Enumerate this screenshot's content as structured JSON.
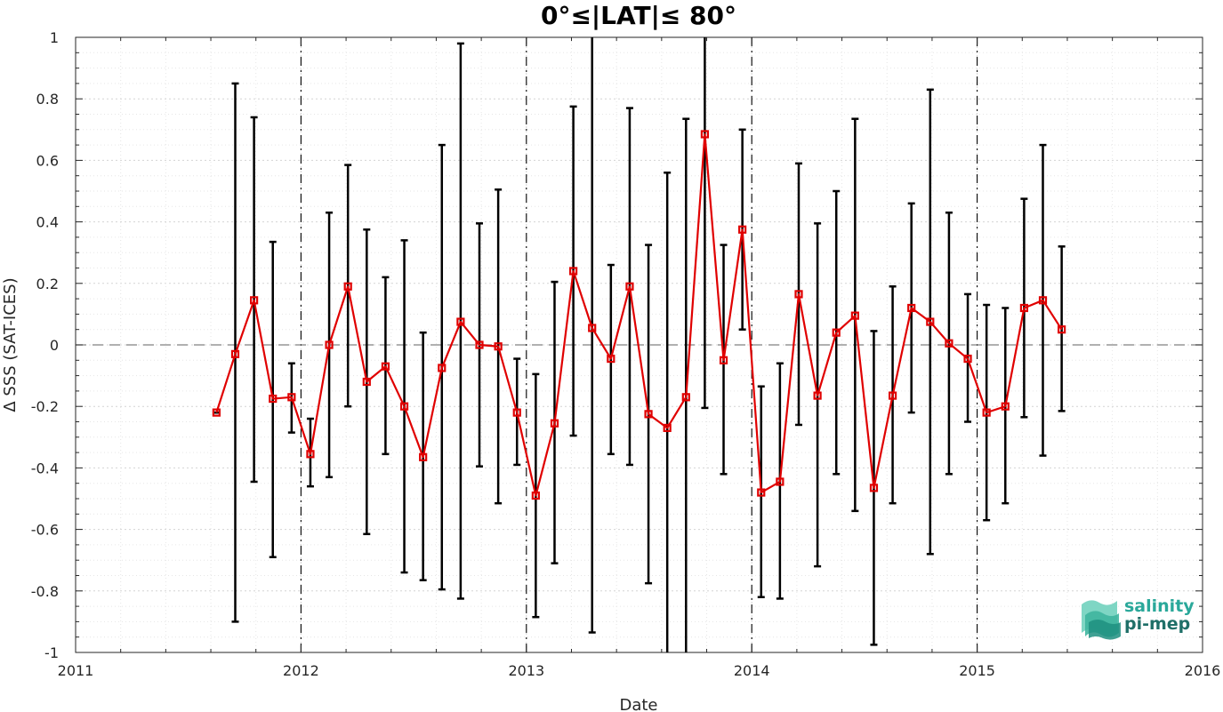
{
  "chart_data": {
    "type": "line",
    "title": "0°≤|LAT|≤ 80°",
    "xlabel": "Date",
    "ylabel": "Δ SSS (SAT-ICES)",
    "xlim": [
      2011,
      2016
    ],
    "ylim": [
      -1,
      1
    ],
    "x_ticks": [
      "2011",
      "2012",
      "2013",
      "2014",
      "2015",
      "2016"
    ],
    "y_ticks": [
      "1",
      "0.8",
      "0.6",
      "0.4",
      "0.2",
      "0",
      "-0.2",
      "-0.4",
      "-0.6",
      "-0.8",
      "-1"
    ],
    "grid": true,
    "year_lines": [
      2012,
      2013,
      2014,
      2015
    ],
    "reference_line": 0,
    "series": [
      {
        "color": "#e00000",
        "marker": "square",
        "error_bar_color": "#000000",
        "points": [
          {
            "x": "2011-08",
            "y": -0.22,
            "err_low": -0.22,
            "err_high": -0.22
          },
          {
            "x": "2011-09",
            "y": -0.03,
            "err_low": -0.9,
            "err_high": 0.85
          },
          {
            "x": "2011-10",
            "y": 0.145,
            "err_low": -0.445,
            "err_high": 0.74
          },
          {
            "x": "2011-11",
            "y": -0.175,
            "err_low": -0.69,
            "err_high": 0.335
          },
          {
            "x": "2011-12",
            "y": -0.17,
            "err_low": -0.285,
            "err_high": -0.06
          },
          {
            "x": "2012-01",
            "y": -0.355,
            "err_low": -0.46,
            "err_high": -0.24
          },
          {
            "x": "2012-02",
            "y": 0.0,
            "err_low": -0.43,
            "err_high": 0.43
          },
          {
            "x": "2012-03",
            "y": 0.19,
            "err_low": -0.2,
            "err_high": 0.585
          },
          {
            "x": "2012-04",
            "y": -0.12,
            "err_low": -0.615,
            "err_high": 0.375
          },
          {
            "x": "2012-05",
            "y": -0.07,
            "err_low": -0.355,
            "err_high": 0.22
          },
          {
            "x": "2012-06",
            "y": -0.2,
            "err_low": -0.74,
            "err_high": 0.34
          },
          {
            "x": "2012-07",
            "y": -0.365,
            "err_low": -0.765,
            "err_high": 0.04
          },
          {
            "x": "2012-08",
            "y": -0.075,
            "err_low": -0.795,
            "err_high": 0.65
          },
          {
            "x": "2012-09",
            "y": 0.075,
            "err_low": -0.825,
            "err_high": 0.98
          },
          {
            "x": "2012-10",
            "y": 0.0,
            "err_low": -0.395,
            "err_high": 0.395
          },
          {
            "x": "2012-11",
            "y": -0.005,
            "err_low": -0.515,
            "err_high": 0.505
          },
          {
            "x": "2012-12",
            "y": -0.22,
            "err_low": -0.39,
            "err_high": -0.045
          },
          {
            "x": "2013-01",
            "y": -0.49,
            "err_low": -0.885,
            "err_high": -0.095
          },
          {
            "x": "2013-02",
            "y": -0.255,
            "err_low": -0.71,
            "err_high": 0.205
          },
          {
            "x": "2013-03",
            "y": 0.24,
            "err_low": -0.295,
            "err_high": 0.775
          },
          {
            "x": "2013-04",
            "y": 0.055,
            "err_low": -0.935,
            "err_high": 1.0
          },
          {
            "x": "2013-05",
            "y": -0.045,
            "err_low": -0.355,
            "err_high": 0.26
          },
          {
            "x": "2013-06",
            "y": 0.19,
            "err_low": -0.39,
            "err_high": 0.77
          },
          {
            "x": "2013-07",
            "y": -0.225,
            "err_low": -0.775,
            "err_high": 0.325
          },
          {
            "x": "2013-08",
            "y": -0.27,
            "err_low": -1.0,
            "err_high": 0.56
          },
          {
            "x": "2013-09",
            "y": -0.17,
            "err_low": -1.0,
            "err_high": 0.735
          },
          {
            "x": "2013-10",
            "y": 0.685,
            "err_low": -0.205,
            "err_high": 1.0
          },
          {
            "x": "2013-11",
            "y": -0.05,
            "err_low": -0.42,
            "err_high": 0.325
          },
          {
            "x": "2013-12",
            "y": 0.375,
            "err_low": 0.05,
            "err_high": 0.7
          },
          {
            "x": "2014-01",
            "y": -0.48,
            "err_low": -0.82,
            "err_high": -0.135
          },
          {
            "x": "2014-02",
            "y": -0.445,
            "err_low": -0.825,
            "err_high": -0.06
          },
          {
            "x": "2014-03",
            "y": 0.165,
            "err_low": -0.26,
            "err_high": 0.59
          },
          {
            "x": "2014-04",
            "y": -0.165,
            "err_low": -0.72,
            "err_high": 0.395
          },
          {
            "x": "2014-05",
            "y": 0.04,
            "err_low": -0.42,
            "err_high": 0.5
          },
          {
            "x": "2014-06",
            "y": 0.095,
            "err_low": -0.54,
            "err_high": 0.735
          },
          {
            "x": "2014-07",
            "y": -0.465,
            "err_low": -0.975,
            "err_high": 0.045
          },
          {
            "x": "2014-08",
            "y": -0.165,
            "err_low": -0.515,
            "err_high": 0.19
          },
          {
            "x": "2014-09",
            "y": 0.12,
            "err_low": -0.22,
            "err_high": 0.46
          },
          {
            "x": "2014-10",
            "y": 0.075,
            "err_low": -0.68,
            "err_high": 0.83
          },
          {
            "x": "2014-11",
            "y": 0.005,
            "err_low": -0.42,
            "err_high": 0.43
          },
          {
            "x": "2014-12",
            "y": -0.045,
            "err_low": -0.25,
            "err_high": 0.165
          },
          {
            "x": "2015-01",
            "y": -0.22,
            "err_low": -0.57,
            "err_high": 0.13
          },
          {
            "x": "2015-02",
            "y": -0.2,
            "err_low": -0.515,
            "err_high": 0.12
          },
          {
            "x": "2015-03",
            "y": 0.12,
            "err_low": -0.235,
            "err_high": 0.475
          },
          {
            "x": "2015-04",
            "y": 0.145,
            "err_low": -0.36,
            "err_high": 0.65
          },
          {
            "x": "2015-05",
            "y": 0.05,
            "err_low": -0.215,
            "err_high": 0.32
          }
        ]
      }
    ]
  },
  "logo": {
    "line1": "salinity",
    "line2": "pi-mep",
    "line1_color": "#2aa89a",
    "line2_color": "#1f6f68"
  }
}
